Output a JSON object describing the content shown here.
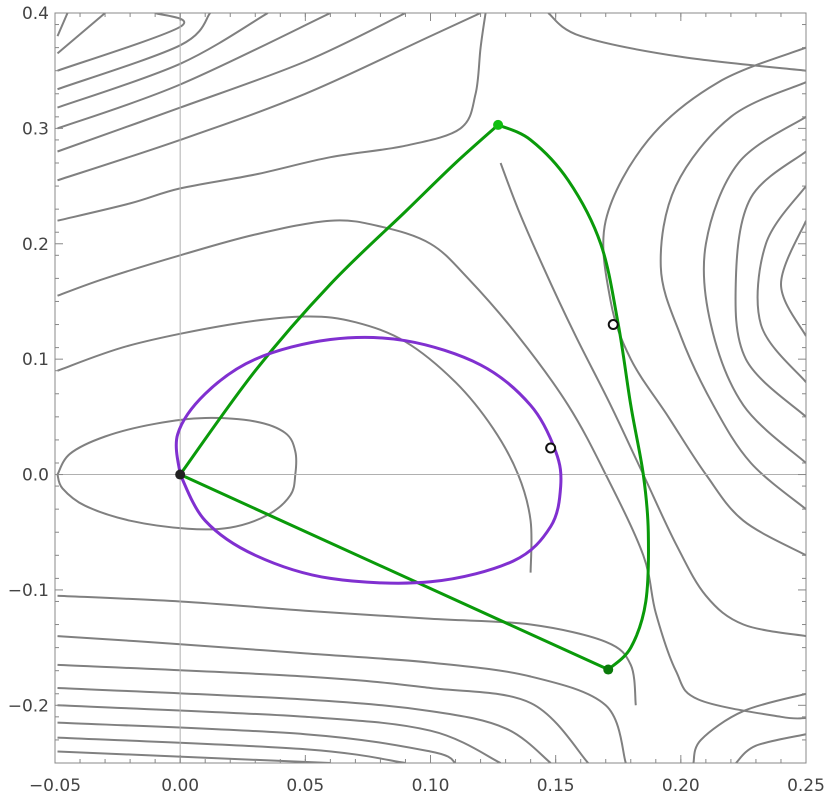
{
  "chart_data": {
    "type": "line",
    "title": "",
    "xlabel": "",
    "ylabel": "",
    "xlim": [
      -0.05,
      0.25
    ],
    "ylim": [
      -0.25,
      0.4
    ],
    "x_ticks": [
      -0.05,
      0.0,
      0.05,
      0.1,
      0.15,
      0.2,
      0.25
    ],
    "x_tick_labels": [
      "−0.05",
      "0.00",
      "0.05",
      "0.10",
      "0.15",
      "0.20",
      "0.25"
    ],
    "y_ticks": [
      -0.2,
      -0.1,
      0.0,
      0.1,
      0.2,
      0.3,
      0.4
    ],
    "y_tick_labels": [
      "−0.2",
      "−0.1",
      "0.0",
      "0.1",
      "0.2",
      "0.3",
      "0.4"
    ],
    "grid": false,
    "axes_through_origin": true,
    "colors": {
      "contour": "#808080",
      "green": "#0a9a0a",
      "purple": "#8030d0",
      "axis": "#b0b0b0",
      "frame": "#888888"
    },
    "contours": [
      {
        "name": "",
        "points": [
          [
            -0.049,
            0.0
          ],
          [
            -0.044,
            0.018
          ],
          [
            -0.03,
            0.033
          ],
          [
            -0.01,
            0.044
          ],
          [
            0.01,
            0.049
          ],
          [
            0.03,
            0.046
          ],
          [
            0.042,
            0.036
          ],
          [
            0.046,
            0.02
          ],
          [
            0.046,
            0.0
          ],
          [
            0.044,
            -0.018
          ],
          [
            0.035,
            -0.035
          ],
          [
            0.02,
            -0.046
          ],
          [
            0.003,
            -0.047
          ],
          [
            -0.02,
            -0.04
          ],
          [
            -0.038,
            -0.027
          ],
          [
            -0.047,
            -0.012
          ],
          [
            -0.049,
            0.0
          ]
        ]
      },
      {
        "name": "",
        "points": [
          [
            -0.049,
            0.09
          ],
          [
            -0.02,
            0.112
          ],
          [
            0.02,
            0.13
          ],
          [
            0.05,
            0.137
          ],
          [
            0.07,
            0.132
          ],
          [
            0.09,
            0.115
          ],
          [
            0.11,
            0.08
          ],
          [
            0.125,
            0.04
          ],
          [
            0.135,
            0.0
          ],
          [
            0.14,
            -0.04
          ],
          [
            0.14,
            -0.085
          ]
        ]
      },
      {
        "name": "",
        "points": [
          [
            -0.049,
            0.155
          ],
          [
            -0.03,
            0.17
          ],
          [
            0.0,
            0.19
          ],
          [
            0.03,
            0.208
          ],
          [
            0.06,
            0.22
          ],
          [
            0.08,
            0.215
          ],
          [
            0.1,
            0.2
          ],
          [
            0.115,
            0.17
          ],
          [
            0.135,
            0.12
          ],
          [
            0.155,
            0.06
          ],
          [
            0.17,
            0.0
          ],
          [
            0.185,
            -0.07
          ],
          [
            0.19,
            -0.12
          ],
          [
            0.198,
            -0.17
          ],
          [
            0.207,
            -0.195
          ],
          [
            0.24,
            -0.21
          ],
          [
            0.25,
            -0.211
          ]
        ]
      },
      {
        "name": "",
        "points": [
          [
            -0.049,
            0.22
          ],
          [
            -0.02,
            0.235
          ],
          [
            0.0,
            0.248
          ],
          [
            0.03,
            0.26
          ],
          [
            0.06,
            0.275
          ],
          [
            0.09,
            0.285
          ],
          [
            0.112,
            0.3
          ],
          [
            0.118,
            0.33
          ],
          [
            0.12,
            0.37
          ],
          [
            0.122,
            0.4
          ]
        ]
      },
      {
        "name": "",
        "points": [
          [
            0.128,
            0.27
          ],
          [
            0.135,
            0.23
          ],
          [
            0.145,
            0.18
          ],
          [
            0.158,
            0.12
          ],
          [
            0.172,
            0.06
          ],
          [
            0.185,
            0.0
          ],
          [
            0.198,
            -0.06
          ],
          [
            0.21,
            -0.105
          ],
          [
            0.225,
            -0.13
          ],
          [
            0.25,
            -0.14
          ]
        ]
      },
      {
        "name": "",
        "points": [
          [
            0.147,
            0.4
          ],
          [
            0.16,
            0.38
          ],
          [
            0.2,
            0.362
          ],
          [
            0.25,
            0.35
          ]
        ]
      },
      {
        "name": "",
        "points": [
          [
            -0.049,
            -0.105
          ],
          [
            0.0,
            -0.11
          ],
          [
            0.05,
            -0.118
          ],
          [
            0.1,
            -0.125
          ],
          [
            0.14,
            -0.13
          ],
          [
            0.17,
            -0.145
          ],
          [
            0.18,
            -0.165
          ],
          [
            0.182,
            -0.2
          ]
        ]
      },
      {
        "name": "",
        "points": [
          [
            -0.049,
            -0.14
          ],
          [
            0.0,
            -0.147
          ],
          [
            0.05,
            -0.155
          ],
          [
            0.1,
            -0.163
          ],
          [
            0.14,
            -0.175
          ],
          [
            0.17,
            -0.2
          ],
          [
            0.178,
            -0.25
          ]
        ]
      },
      {
        "name": "",
        "points": [
          [
            -0.049,
            -0.165
          ],
          [
            0.05,
            -0.175
          ],
          [
            0.1,
            -0.185
          ],
          [
            0.14,
            -0.198
          ],
          [
            0.163,
            -0.25
          ]
        ]
      },
      {
        "name": "",
        "points": [
          [
            -0.049,
            -0.185
          ],
          [
            0.05,
            -0.195
          ],
          [
            0.1,
            -0.205
          ],
          [
            0.13,
            -0.22
          ],
          [
            0.148,
            -0.25
          ]
        ]
      },
      {
        "name": "",
        "points": [
          [
            -0.049,
            -0.2
          ],
          [
            0.05,
            -0.21
          ],
          [
            0.1,
            -0.222
          ],
          [
            0.128,
            -0.25
          ]
        ]
      },
      {
        "name": "",
        "points": [
          [
            -0.049,
            -0.215
          ],
          [
            0.05,
            -0.225
          ],
          [
            0.1,
            -0.24
          ],
          [
            0.11,
            -0.25
          ]
        ]
      },
      {
        "name": "",
        "points": [
          [
            -0.049,
            -0.228
          ],
          [
            0.05,
            -0.238
          ],
          [
            0.09,
            -0.25
          ]
        ]
      },
      {
        "name": "",
        "points": [
          [
            -0.049,
            -0.24
          ],
          [
            0.06,
            -0.25
          ]
        ]
      },
      {
        "name": "",
        "points": [
          [
            0.25,
            -0.19
          ],
          [
            0.225,
            -0.205
          ],
          [
            0.208,
            -0.23
          ],
          [
            0.205,
            -0.25
          ]
        ]
      },
      {
        "name": "",
        "points": [
          [
            0.25,
            -0.225
          ],
          [
            0.23,
            -0.235
          ],
          [
            0.222,
            -0.25
          ]
        ]
      },
      {
        "name": "",
        "points": [
          [
            0.25,
            0.37
          ],
          [
            0.215,
            0.34
          ],
          [
            0.187,
            0.29
          ],
          [
            0.17,
            0.22
          ],
          [
            0.172,
            0.15
          ],
          [
            0.18,
            0.1
          ],
          [
            0.195,
            0.05
          ],
          [
            0.21,
            0.0
          ],
          [
            0.225,
            -0.04
          ],
          [
            0.25,
            -0.07
          ]
        ]
      },
      {
        "name": "",
        "points": [
          [
            0.25,
            0.34
          ],
          [
            0.22,
            0.31
          ],
          [
            0.198,
            0.25
          ],
          [
            0.192,
            0.18
          ],
          [
            0.2,
            0.12
          ],
          [
            0.213,
            0.06
          ],
          [
            0.228,
            0.01
          ],
          [
            0.25,
            -0.03
          ]
        ]
      },
      {
        "name": "",
        "points": [
          [
            0.25,
            0.31
          ],
          [
            0.223,
            0.27
          ],
          [
            0.21,
            0.2
          ],
          [
            0.212,
            0.13
          ],
          [
            0.225,
            0.06
          ],
          [
            0.25,
            0.01
          ]
        ]
      },
      {
        "name": "",
        "points": [
          [
            0.25,
            0.28
          ],
          [
            0.228,
            0.24
          ],
          [
            0.222,
            0.17
          ],
          [
            0.226,
            0.1
          ],
          [
            0.25,
            0.05
          ]
        ]
      },
      {
        "name": "",
        "points": [
          [
            0.25,
            0.25
          ],
          [
            0.234,
            0.2
          ],
          [
            0.232,
            0.13
          ],
          [
            0.25,
            0.08
          ]
        ]
      },
      {
        "name": "",
        "points": [
          [
            0.25,
            0.22
          ],
          [
            0.24,
            0.165
          ],
          [
            0.25,
            0.12
          ]
        ]
      },
      {
        "name": "",
        "points": [
          [
            -0.049,
            0.255
          ],
          [
            0.0,
            0.29
          ],
          [
            0.05,
            0.33
          ],
          [
            0.1,
            0.38
          ],
          [
            0.12,
            0.4
          ]
        ]
      },
      {
        "name": "",
        "points": [
          [
            -0.049,
            0.28
          ],
          [
            0.0,
            0.318
          ],
          [
            0.05,
            0.358
          ],
          [
            0.09,
            0.4
          ]
        ]
      },
      {
        "name": "",
        "points": [
          [
            -0.049,
            0.3
          ],
          [
            0.0,
            0.338
          ],
          [
            0.06,
            0.4
          ]
        ]
      },
      {
        "name": "",
        "points": [
          [
            -0.049,
            0.318
          ],
          [
            0.0,
            0.356
          ],
          [
            0.035,
            0.4
          ]
        ]
      },
      {
        "name": "",
        "points": [
          [
            -0.049,
            0.334
          ],
          [
            0.0,
            0.372
          ],
          [
            0.012,
            0.4
          ]
        ]
      },
      {
        "name": "",
        "points": [
          [
            -0.049,
            0.35
          ],
          [
            0.0,
            0.388
          ],
          [
            -0.01,
            0.4
          ]
        ]
      },
      {
        "name": "",
        "points": [
          [
            -0.049,
            0.365
          ],
          [
            -0.03,
            0.4
          ]
        ]
      },
      {
        "name": "",
        "points": [
          [
            -0.049,
            0.38
          ],
          [
            -0.045,
            0.4
          ]
        ]
      }
    ],
    "curves": [
      {
        "name": "",
        "color": "green",
        "points": [
          [
            0.0,
            0.0
          ],
          [
            0.03,
            0.09
          ],
          [
            0.06,
            0.165
          ],
          [
            0.09,
            0.228
          ],
          [
            0.11,
            0.27
          ],
          [
            0.127,
            0.303
          ]
        ]
      },
      {
        "name": "",
        "color": "green",
        "points": [
          [
            0.127,
            0.303
          ],
          [
            0.14,
            0.29
          ],
          [
            0.155,
            0.255
          ],
          [
            0.168,
            0.2
          ],
          [
            0.175,
            0.13
          ],
          [
            0.18,
            0.06
          ],
          [
            0.185,
            0.0
          ],
          [
            0.187,
            -0.05
          ],
          [
            0.186,
            -0.11
          ],
          [
            0.18,
            -0.15
          ],
          [
            0.171,
            -0.169
          ]
        ]
      },
      {
        "name": "",
        "color": "green",
        "points": [
          [
            0.171,
            -0.169
          ],
          [
            0.0,
            0.0
          ]
        ]
      },
      {
        "name": "",
        "color": "purple",
        "points": [
          [
            0.0,
            0.0
          ],
          [
            -0.001,
            0.035
          ],
          [
            0.01,
            0.07
          ],
          [
            0.03,
            0.1
          ],
          [
            0.06,
            0.117
          ],
          [
            0.09,
            0.116
          ],
          [
            0.12,
            0.095
          ],
          [
            0.14,
            0.06
          ],
          [
            0.15,
            0.02
          ],
          [
            0.152,
            -0.01
          ],
          [
            0.148,
            -0.045
          ],
          [
            0.133,
            -0.075
          ],
          [
            0.1,
            -0.093
          ],
          [
            0.06,
            -0.09
          ],
          [
            0.03,
            -0.07
          ],
          [
            0.01,
            -0.04
          ],
          [
            0.0,
            0.0
          ]
        ]
      }
    ],
    "points": [
      {
        "x": 0.0,
        "y": 0.0,
        "style": "filled",
        "color": "#222222"
      },
      {
        "x": 0.127,
        "y": 0.303,
        "style": "filled",
        "color": "#0fbf0f"
      },
      {
        "x": 0.171,
        "y": -0.169,
        "style": "filled",
        "color": "#0a7a0a"
      },
      {
        "x": 0.173,
        "y": 0.13,
        "style": "open",
        "color": "#111111"
      },
      {
        "x": 0.148,
        "y": 0.023,
        "style": "open",
        "color": "#111111"
      }
    ]
  }
}
